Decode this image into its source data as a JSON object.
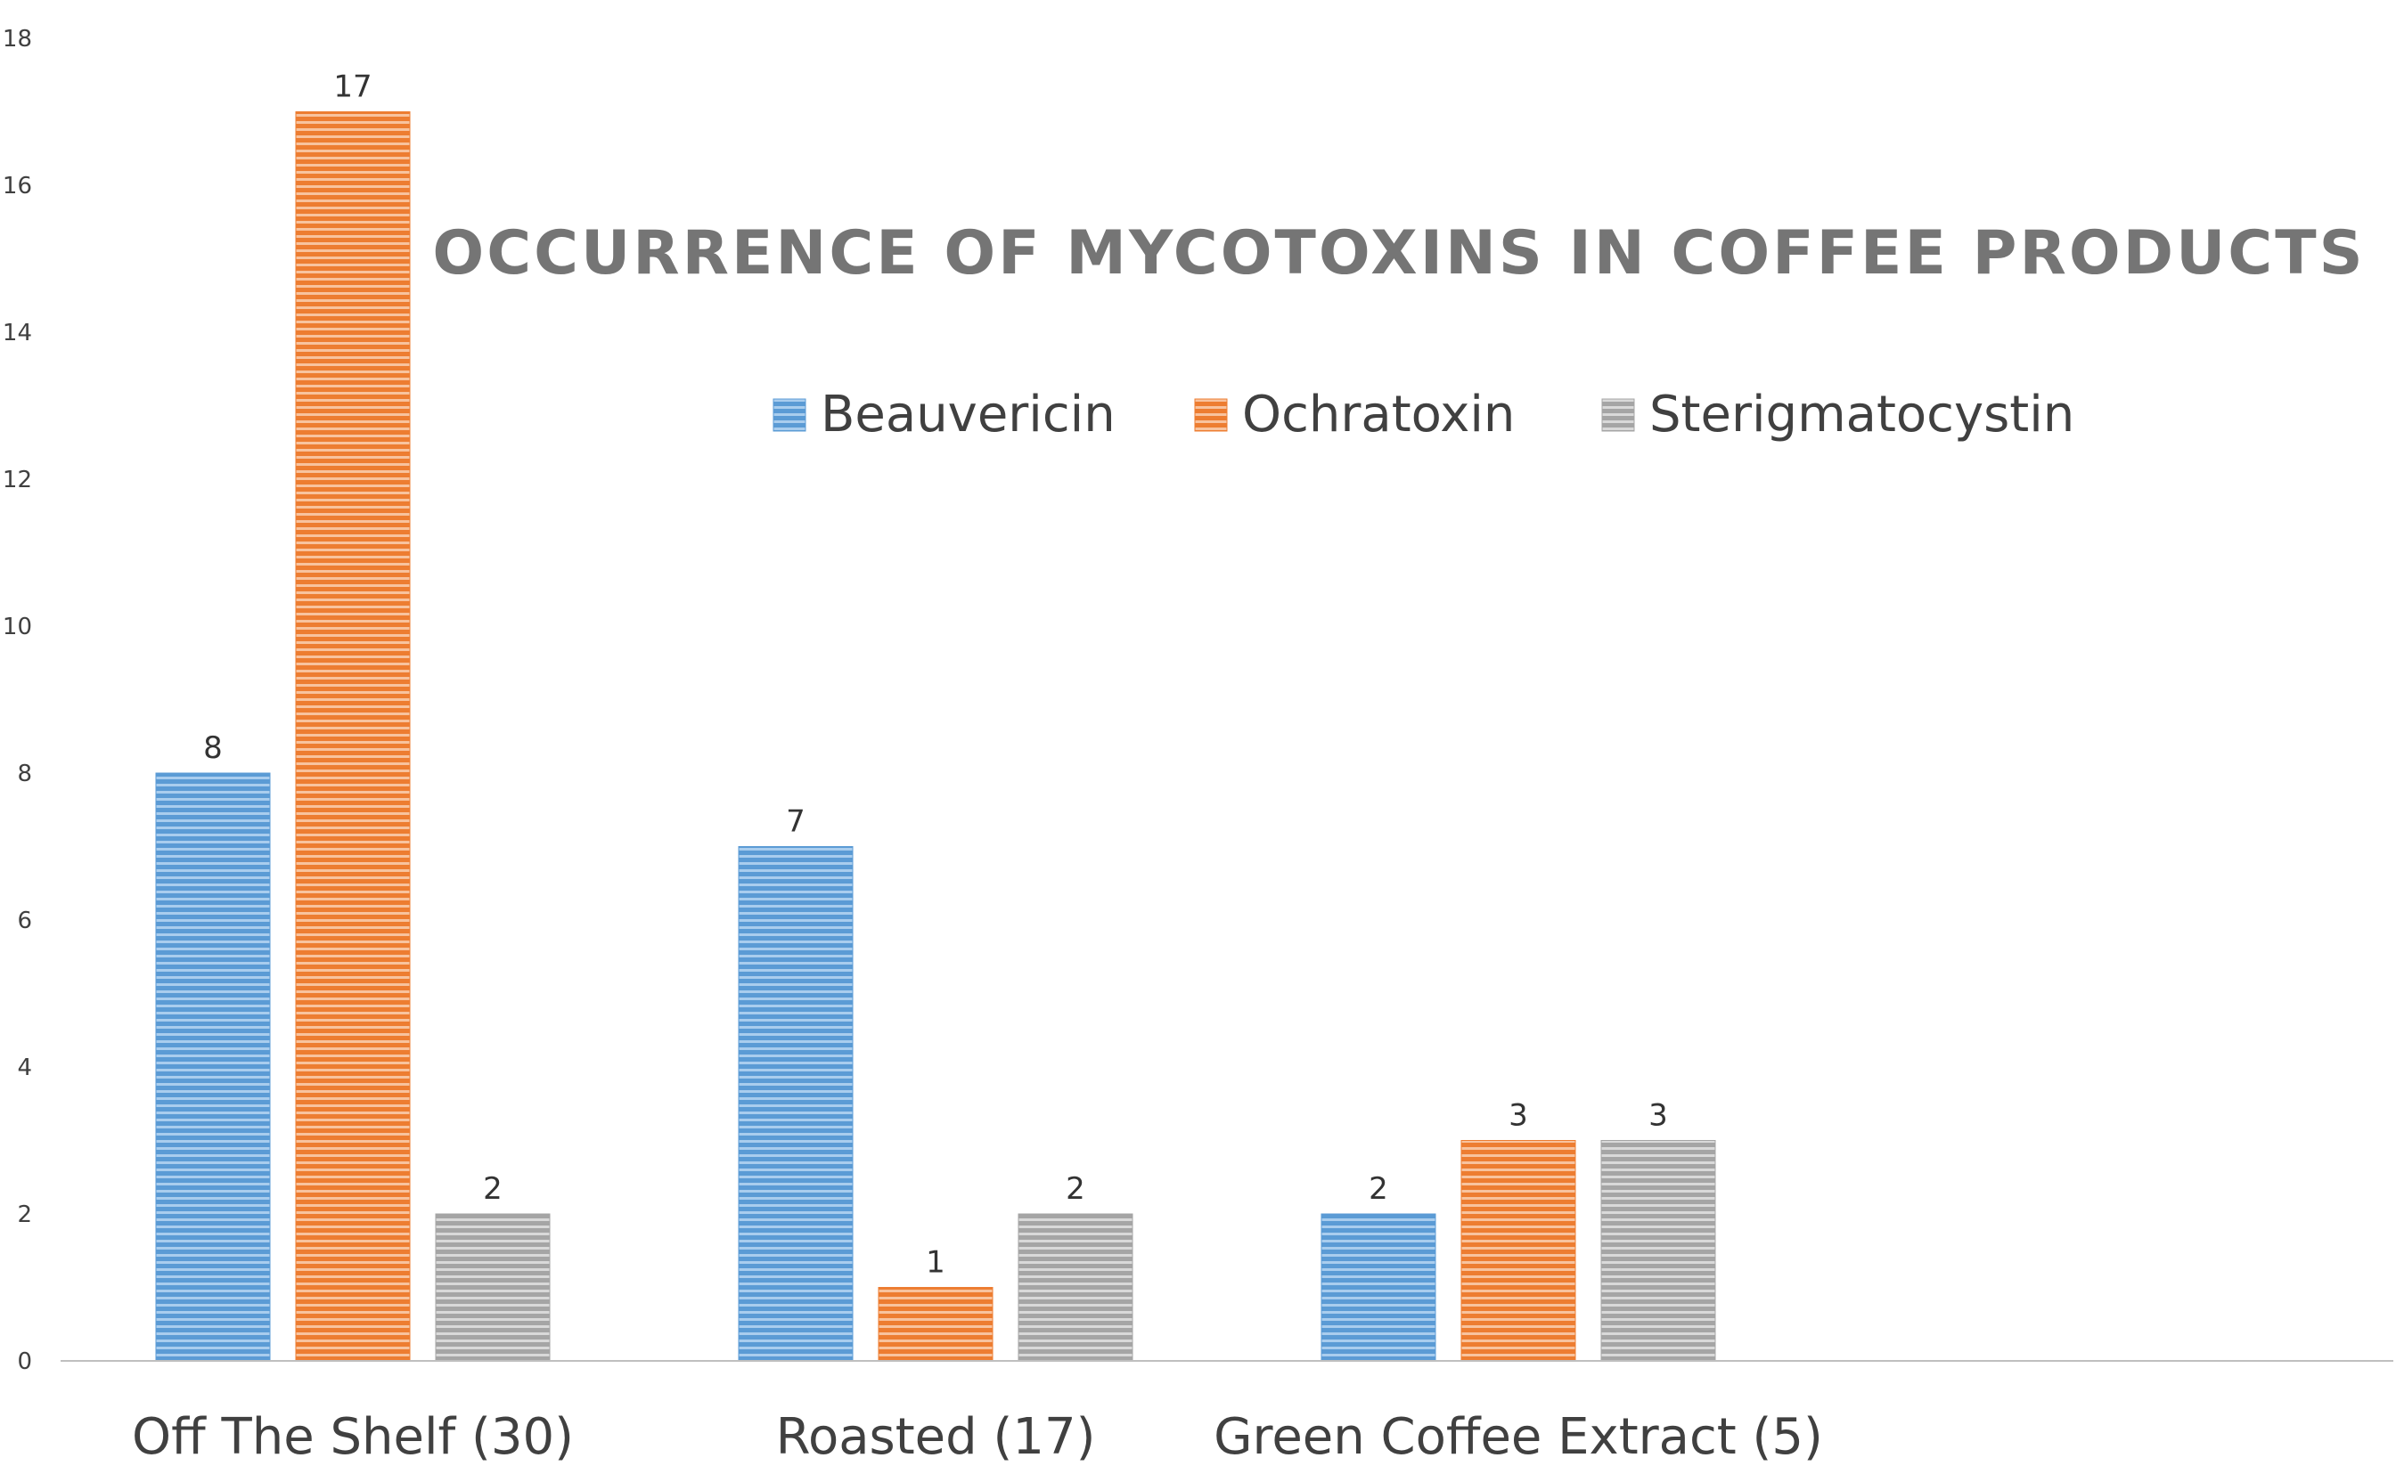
{
  "chart_data": {
    "type": "bar",
    "title": "OCCURRENCE OF MYCOTOXINS IN COFFEE PRODUCTS",
    "categories": [
      "Off The Shelf (30)",
      "Roasted (17)",
      "Green Coffee Extract (5)"
    ],
    "series": [
      {
        "name": "Beauvericin",
        "values": [
          8,
          7,
          2
        ],
        "color": "#5b9bd5",
        "light": "#a9cdee"
      },
      {
        "name": "Ochratoxin",
        "values": [
          17,
          1,
          3
        ],
        "color": "#ed7d31",
        "light": "#f8c39e"
      },
      {
        "name": "Sterigmatocystin",
        "values": [
          2,
          2,
          3
        ],
        "color": "#a5a5a5",
        "light": "#d9d9d9"
      }
    ],
    "yticks": [
      "0",
      "2",
      "4",
      "6",
      "8",
      "10",
      "12",
      "14",
      "16",
      "18"
    ],
    "ylim": [
      0,
      18
    ],
    "xlabel": "",
    "ylabel": "",
    "legend_position": "top",
    "grid": false,
    "data_labels": true,
    "axis_color": "#bfbfbf"
  }
}
